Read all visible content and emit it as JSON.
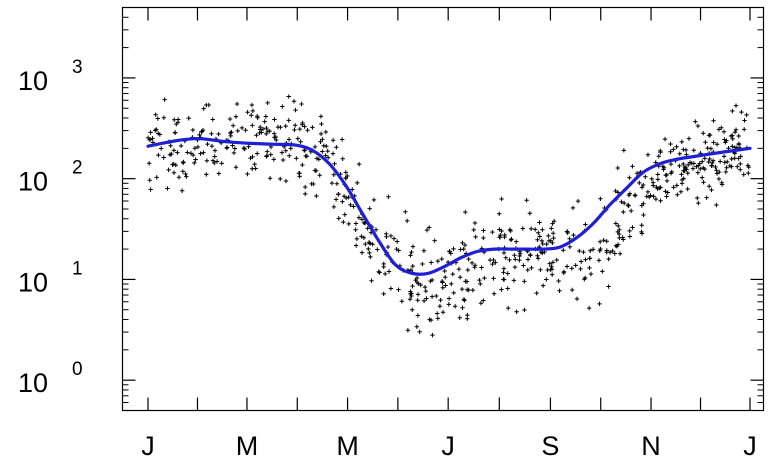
{
  "chart_data": {
    "type": "scatter",
    "title": "",
    "xlabel": "",
    "ylabel": "",
    "y_scale": "log",
    "ylim": [
      0.5,
      5000
    ],
    "xlim": [
      0,
      365
    ],
    "grid": false,
    "x_ticks": [
      {
        "value": 0,
        "label": "J"
      },
      {
        "value": 60,
        "label": "M"
      },
      {
        "value": 121,
        "label": "M"
      },
      {
        "value": 182,
        "label": "J"
      },
      {
        "value": 244,
        "label": "S"
      },
      {
        "value": 305,
        "label": "N"
      },
      {
        "value": 365,
        "label": "J"
      }
    ],
    "y_ticks": [
      {
        "value": 1,
        "base": "10",
        "exponent": "0"
      },
      {
        "value": 10,
        "base": "10",
        "exponent": "1"
      },
      {
        "value": 100,
        "base": "10",
        "exponent": "2"
      },
      {
        "value": 1000,
        "base": "10",
        "exponent": "3"
      }
    ],
    "series": [
      {
        "kind": "points",
        "color": "#000000",
        "marker": "plus",
        "envelope": [
          {
            "x": 0,
            "y": 200
          },
          {
            "x": 30,
            "y": 210
          },
          {
            "x": 60,
            "y": 220
          },
          {
            "x": 90,
            "y": 220
          },
          {
            "x": 105,
            "y": 160
          },
          {
            "x": 120,
            "y": 80
          },
          {
            "x": 135,
            "y": 25
          },
          {
            "x": 150,
            "y": 12
          },
          {
            "x": 170,
            "y": 8
          },
          {
            "x": 190,
            "y": 10
          },
          {
            "x": 210,
            "y": 18
          },
          {
            "x": 230,
            "y": 18
          },
          {
            "x": 250,
            "y": 15
          },
          {
            "x": 270,
            "y": 22
          },
          {
            "x": 290,
            "y": 50
          },
          {
            "x": 305,
            "y": 110
          },
          {
            "x": 325,
            "y": 150
          },
          {
            "x": 345,
            "y": 170
          },
          {
            "x": 365,
            "y": 210
          }
        ],
        "spread_log10": 0.35,
        "count": 760
      },
      {
        "kind": "line",
        "color": "#1f1fd6",
        "x": [
          0,
          15,
          30,
          45,
          60,
          75,
          90,
          100,
          110,
          120,
          130,
          140,
          150,
          160,
          170,
          180,
          190,
          200,
          210,
          220,
          230,
          240,
          250,
          260,
          270,
          280,
          290,
          300,
          310,
          320,
          330,
          340,
          350,
          365
        ],
        "y": [
          210,
          235,
          250,
          235,
          225,
          220,
          215,
          190,
          140,
          85,
          45,
          24,
          14,
          11.5,
          11.5,
          13.5,
          16.5,
          19,
          20,
          20,
          20,
          20,
          21,
          26,
          36,
          55,
          80,
          115,
          140,
          155,
          165,
          175,
          185,
          200
        ]
      }
    ]
  }
}
